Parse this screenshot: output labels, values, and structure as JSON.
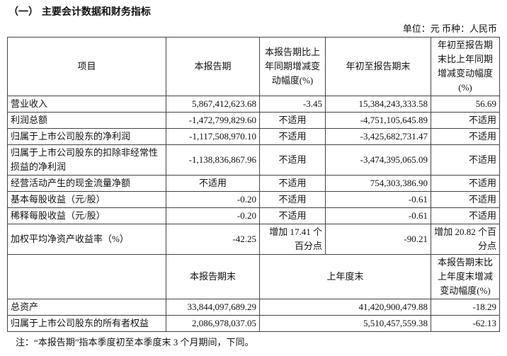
{
  "title": "（一）  主要会计数据和财务指标",
  "unit": "单位：元   币种：人民币",
  "header": [
    "项目",
    "本报告期",
    "本报告期比上年同期增减变动幅度(%)",
    "年初至报告期末",
    "年初至报告期末比上年同期增减变动幅度(%)"
  ],
  "rows": [
    [
      "营业收入",
      "5,867,412,623.68",
      "-3.45",
      "15,384,243,333.58",
      "56.69"
    ],
    [
      "利润总额",
      "-1,472,799,829.60",
      "不适用",
      "-4,751,105,645.89",
      "不适用"
    ],
    [
      "归属于上市公司股东的净利润",
      "-1,117,508,970.10",
      "不适用",
      "-3,425,682,731.47",
      "不适用"
    ],
    [
      "归属于上市公司股东的扣除非经常性损益的净利润",
      "-1,138,836,867.96",
      "不适用",
      "-3,474,395,065.09",
      "不适用"
    ],
    [
      "经营活动产生的现金流量净额",
      "不适用",
      "不适用",
      "754,303,386.90",
      "不适用"
    ],
    [
      "基本每股收益（元/股）",
      "-0.20",
      "不适用",
      "-0.61",
      "不适用"
    ],
    [
      "稀释每股收益（元/股）",
      "-0.20",
      "不适用",
      "-0.61",
      "不适用"
    ],
    [
      "加权平均净资产收益率（%）",
      "-42.25",
      "增加 17.41 个百分点",
      "-90.21",
      "增加 20.82 个百分点"
    ]
  ],
  "header2": [
    "",
    "本报告期末",
    "上年度末",
    "本报告期末比上年度末增减变动幅度(%)"
  ],
  "rows2": [
    [
      "总资产",
      "33,844,097,689.29",
      "41,420,900,479.88",
      "-18.29"
    ],
    [
      "归属于上市公司股东的所有者权益",
      "2,086,978,037.05",
      "5,510,457,559.38",
      "-62.13"
    ]
  ],
  "note": "注：“本报告期”指本季度初至本季度末 3 个月期间，下同。"
}
